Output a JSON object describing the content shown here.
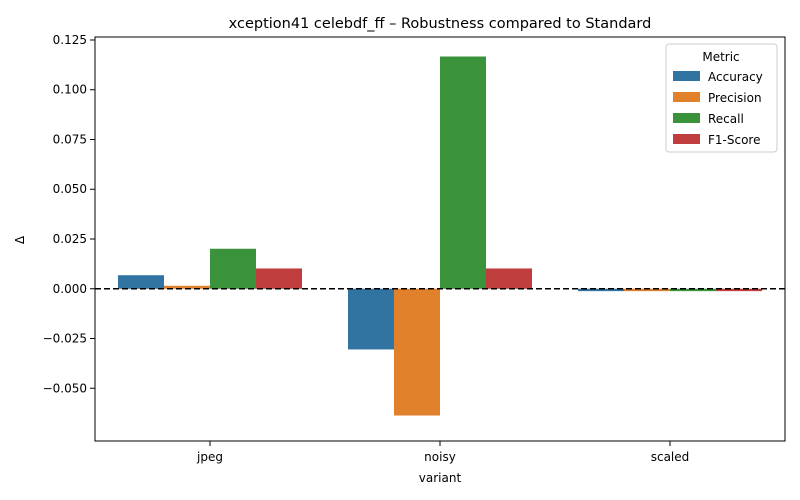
{
  "chart_data": {
    "type": "bar",
    "title": "xception41 celebdf_ff – Robustness compared to Standard",
    "xlabel": "variant",
    "ylabel": "Δ",
    "categories": [
      "jpeg",
      "noisy",
      "scaled"
    ],
    "ylim": [
      -0.0765,
      0.1265
    ],
    "yticks": [
      -0.05,
      -0.025,
      0.0,
      0.025,
      0.05,
      0.075,
      0.1,
      0.125
    ],
    "ytick_labels": [
      "−0.050",
      "−0.025",
      "0.000",
      "0.025",
      "0.050",
      "0.075",
      "0.100",
      "0.125"
    ],
    "reference_line": 0.0,
    "grid": false,
    "legend": {
      "title": "Metric",
      "placement": "top-right"
    },
    "series": [
      {
        "name": "Accuracy",
        "color": "#3274a1",
        "values": [
          0.0068,
          -0.0305,
          -0.0012
        ]
      },
      {
        "name": "Precision",
        "color": "#e1812c",
        "values": [
          0.0015,
          -0.0637,
          -0.0012
        ]
      },
      {
        "name": "Recall",
        "color": "#3a923a",
        "values": [
          0.0201,
          0.1167,
          -0.0012
        ]
      },
      {
        "name": "F1-Score",
        "color": "#c03d3e",
        "values": [
          0.0102,
          0.0102,
          -0.0012
        ]
      }
    ]
  }
}
